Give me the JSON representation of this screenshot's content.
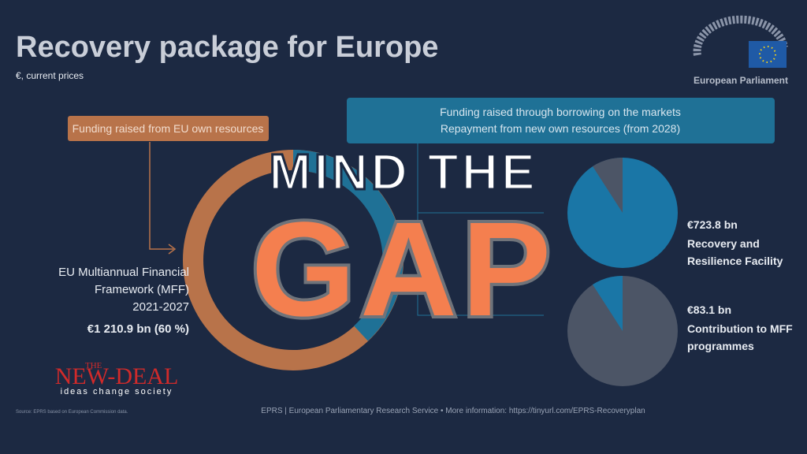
{
  "header": {
    "title": "Recovery package for Europe",
    "subtitle": "€, current prices",
    "logo": "European Parliament"
  },
  "boxes": {
    "borrowing": [
      "Funding raised through borrowing on the markets",
      "Repayment from new own resources (from 2028)"
    ],
    "own_resources": "Funding raised from EU own resources"
  },
  "overlay": {
    "line1": "MIND THE",
    "line2": "GAP"
  },
  "mff": {
    "lines": [
      "EU Multiannual Financial",
      "Framework (MFF)",
      "2021-2027"
    ],
    "amount": "€1 210.9 bn (60 %)"
  },
  "rrf": {
    "amount": "€723.8 bn",
    "lines": [
      "Recovery and",
      "Resilience Facility"
    ]
  },
  "contribution": {
    "amount": "€83.1 bn",
    "lines": [
      "Contribution to MFF",
      "programmes"
    ]
  },
  "brand": {
    "small": "THE",
    "name": "NEW-DEAL",
    "tagline": "ideas change society"
  },
  "footer": {
    "source": "Source: EPRS based on European Commission data.",
    "credit": "EPRS | European Parliamentary Research Service • More information: https://tinyurl.com/EPRS-Recoveryplan"
  }
}
